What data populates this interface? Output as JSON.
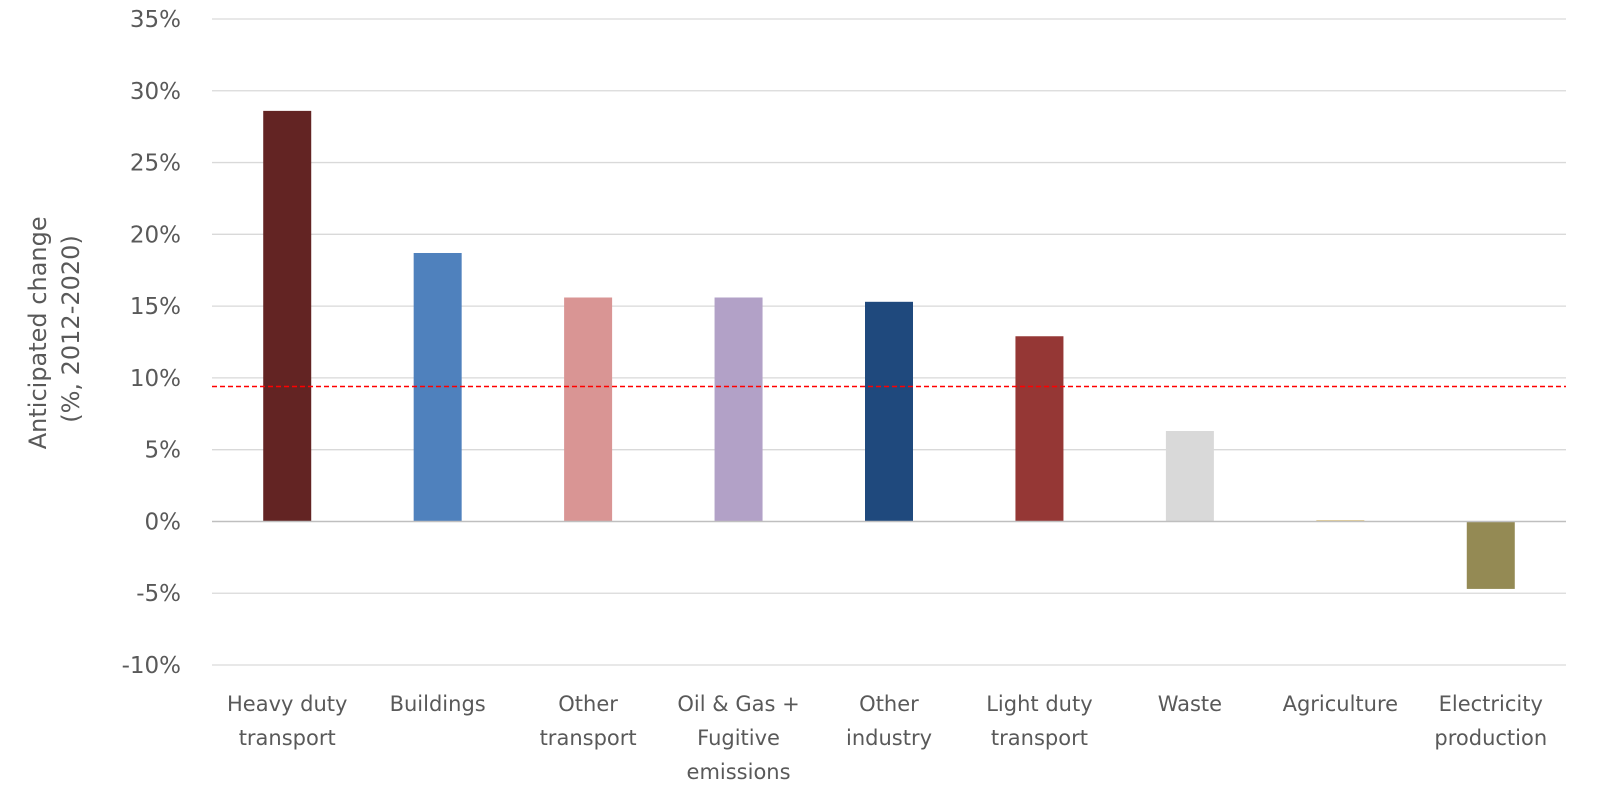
{
  "chart_data": {
    "type": "bar",
    "title": "",
    "ylabel": [
      "Anticipated change",
      "(%, 2012-2020)"
    ],
    "xlabel": "",
    "ylim": [
      -10,
      35
    ],
    "ytick_step": 5,
    "ytick_labels": [
      "35%",
      "30%",
      "25%",
      "20%",
      "15%",
      "10%",
      "5%",
      "0%",
      "-5%",
      "-10%"
    ],
    "grid": true,
    "categories": [
      [
        "Heavy duty",
        "transport"
      ],
      [
        "Buildings"
      ],
      [
        "Other",
        "transport"
      ],
      [
        "Oil & Gas +",
        "Fugitive",
        "emissions"
      ],
      [
        "Other",
        "industry"
      ],
      [
        "Light duty",
        "transport"
      ],
      [
        "Waste"
      ],
      [
        "Agriculture"
      ],
      [
        "Electricity",
        "production"
      ]
    ],
    "values": [
      28.6,
      18.7,
      15.6,
      15.6,
      15.3,
      12.9,
      6.3,
      0.1,
      -4.7
    ],
    "colors": [
      "#632423",
      "#4f81bd",
      "#d99594",
      "#b2a1c7",
      "#1f497d",
      "#953735",
      "#d9d9d9",
      "#e6cf94",
      "#948a54"
    ],
    "reference_line": {
      "value": 9.4,
      "color": "#ff0000",
      "style": "dashed"
    }
  }
}
